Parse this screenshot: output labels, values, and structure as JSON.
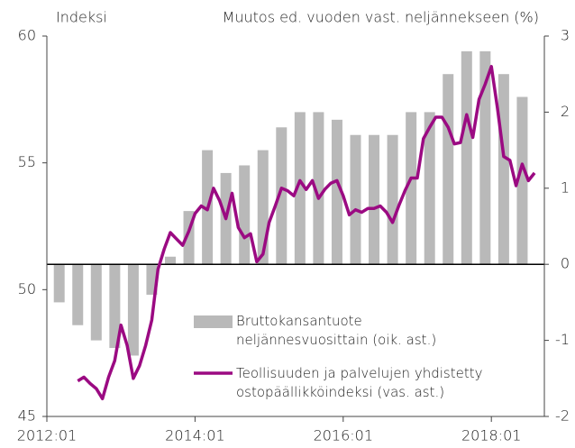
{
  "chart_data": {
    "type": "combo",
    "title_left": "Indeksi",
    "title_right": "Muutos ed. vuoden vast. neljännekseen (%)",
    "categories": [
      "2012:01",
      null,
      null,
      null,
      null,
      null,
      null,
      null,
      null,
      null,
      null,
      null,
      null,
      null,
      null,
      null,
      null,
      null,
      null,
      null,
      null,
      null,
      null,
      null,
      "2014:01",
      null,
      null,
      null,
      null,
      null,
      null,
      null,
      null,
      null,
      null,
      null,
      null,
      null,
      null,
      null,
      null,
      null,
      null,
      null,
      null,
      null,
      null,
      null,
      "2016:01",
      null,
      null,
      null,
      null,
      null,
      null,
      null,
      null,
      null,
      null,
      null,
      null,
      null,
      null,
      null,
      null,
      null,
      null,
      null,
      null,
      null,
      null,
      null,
      "2018:01",
      null,
      null,
      null,
      null,
      null,
      null,
      null,
      null
    ],
    "ylim": [
      45,
      60
    ],
    "yticks": [
      45,
      50,
      55,
      60
    ],
    "y2lim": [
      -2,
      3
    ],
    "y2ticks": [
      -2,
      -1,
      0,
      1,
      2,
      3
    ],
    "series": [
      {
        "name": "Bruttokansantuote neljännesvuosittain (oik. ast.)",
        "type": "bar",
        "axis": "y2",
        "color": "#b9b9b9",
        "values": [
          null,
          null,
          -0.5,
          null,
          null,
          -0.8,
          null,
          null,
          -1.0,
          null,
          null,
          -1.1,
          null,
          null,
          -1.2,
          null,
          null,
          -0.4,
          null,
          null,
          0.1,
          null,
          null,
          0.7,
          null,
          null,
          1.5,
          null,
          null,
          1.2,
          null,
          null,
          1.3,
          null,
          null,
          1.5,
          null,
          null,
          1.8,
          null,
          null,
          2.0,
          null,
          null,
          2.0,
          null,
          null,
          1.9,
          null,
          null,
          1.7,
          null,
          null,
          1.7,
          null,
          null,
          1.7,
          null,
          null,
          2.0,
          null,
          null,
          2.0,
          null,
          null,
          2.5,
          null,
          null,
          2.8,
          null,
          null,
          2.8,
          null,
          null,
          2.5,
          null,
          null,
          2.2,
          null,
          null,
          null
        ]
      },
      {
        "name": "Teollisuuden ja palvelujen yhdistetty ostopäällikköindeksi (vas. ast.)",
        "type": "line",
        "color": "#9b0a82",
        "values": [
          null,
          null,
          null,
          null,
          null,
          46.4,
          46.55,
          46.3,
          46.1,
          45.7,
          46.55,
          47.2,
          48.6,
          47.8,
          46.5,
          47.0,
          47.8,
          48.8,
          50.8,
          51.6,
          52.25,
          52.0,
          51.75,
          52.3,
          53.0,
          53.3,
          53.15,
          54.0,
          53.5,
          52.8,
          53.8,
          52.45,
          52.05,
          52.2,
          51.1,
          51.4,
          52.65,
          53.3,
          54.0,
          53.9,
          53.7,
          54.3,
          53.95,
          54.3,
          53.6,
          53.95,
          54.2,
          54.3,
          53.7,
          52.95,
          53.15,
          53.05,
          53.2,
          53.2,
          53.3,
          53.05,
          52.65,
          53.3,
          53.9,
          54.4,
          54.4,
          55.95,
          56.4,
          56.8,
          56.8,
          56.4,
          55.75,
          55.8,
          56.9,
          56.0,
          57.5,
          58.1,
          58.8,
          57.15,
          55.25,
          55.1,
          54.1,
          54.95,
          54.3,
          54.6,
          null
        ]
      }
    ]
  }
}
